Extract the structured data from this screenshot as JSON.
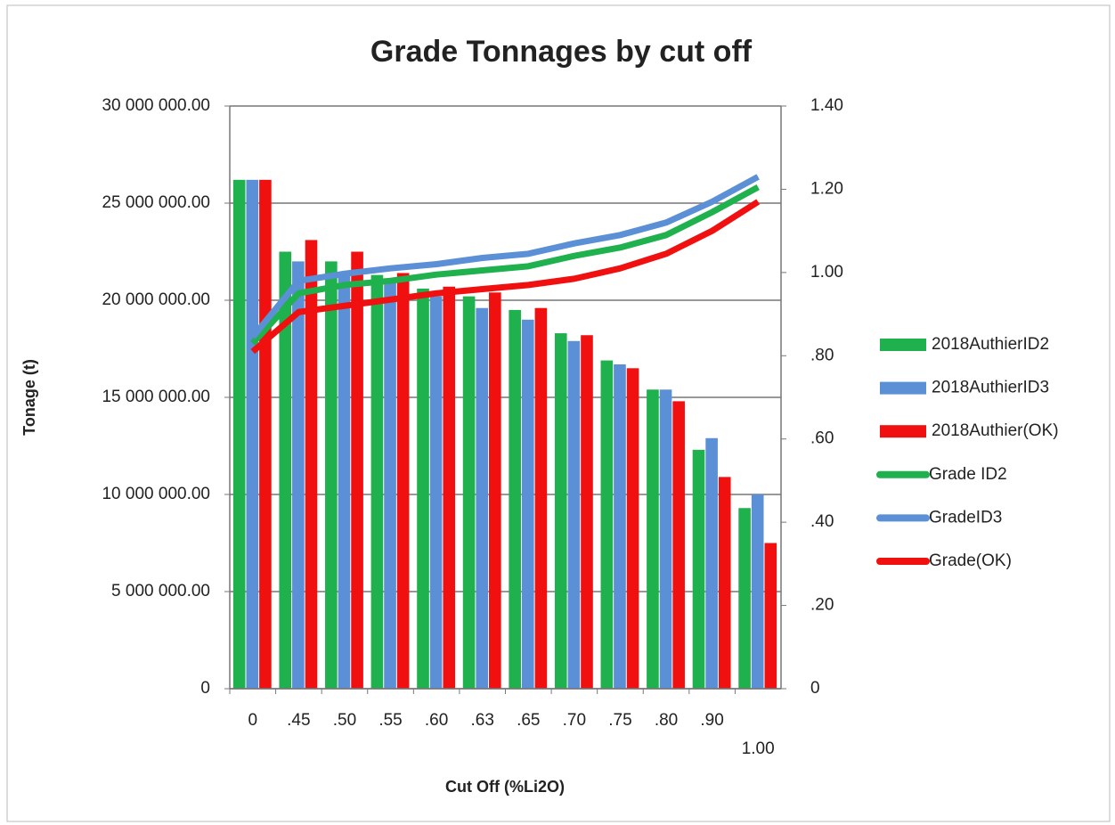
{
  "chart_data": {
    "type": "bar_line",
    "title": "Grade Tonnages by cut off",
    "y_label": "Tonage (t)",
    "x_label": "Cut Off (%Li2O)",
    "categories": [
      "0",
      ".45",
      ".50",
      ".55",
      ".60",
      ".63",
      ".65",
      ".70",
      ".75",
      ".80",
      ".90",
      "1.00"
    ],
    "series": [
      {
        "name": "2018AuthierID2",
        "kind": "bar",
        "color": "#1fb14d",
        "values": [
          26200000,
          22500000,
          22000000,
          21300000,
          20600000,
          20200000,
          19500000,
          18300000,
          16900000,
          15400000,
          12300000,
          9300000
        ]
      },
      {
        "name": "2018AuthierID3",
        "kind": "bar",
        "color": "#5b8fd6",
        "values": [
          26200000,
          22000000,
          21400000,
          21000000,
          20200000,
          19600000,
          19000000,
          17900000,
          16700000,
          15400000,
          12900000,
          10000000
        ]
      },
      {
        "name": "2018Authier(OK)",
        "kind": "bar",
        "color": "#f01010",
        "values": [
          26200000,
          23100000,
          22500000,
          21400000,
          20700000,
          20400000,
          19600000,
          18200000,
          16500000,
          14800000,
          10900000,
          7500000
        ]
      },
      {
        "name": "Grade ID2",
        "kind": "line",
        "axis": "y2",
        "color": "#1fb14d",
        "values": [
          0.83,
          0.95,
          0.97,
          0.98,
          0.995,
          1.005,
          1.015,
          1.04,
          1.06,
          1.09,
          1.145,
          1.205
        ]
      },
      {
        "name": "GradeID3",
        "kind": "line",
        "axis": "y2",
        "color": "#5b8fd6",
        "values": [
          0.845,
          0.98,
          0.997,
          1.01,
          1.02,
          1.035,
          1.045,
          1.07,
          1.09,
          1.12,
          1.17,
          1.23
        ]
      },
      {
        "name": "Grade(OK)",
        "kind": "line",
        "axis": "y2",
        "color": "#f01010",
        "values": [
          0.81,
          0.905,
          0.92,
          0.935,
          0.95,
          0.96,
          0.97,
          0.985,
          1.01,
          1.045,
          1.1,
          1.17
        ]
      }
    ],
    "ylim": [
      0,
      30000000
    ],
    "yticks": [
      0,
      {
        "value": 5000000,
        "label": "5 000 000.00"
      },
      {
        "value": 10000000,
        "label": "10 000 000.00"
      },
      {
        "value": 15000000,
        "label": "15 000 000.00"
      },
      {
        "value": 20000000,
        "label": "20 000 000.00"
      },
      {
        "value": 25000000,
        "label": "25 000 000.00"
      },
      {
        "value": 30000000,
        "label": "30 000 000.00"
      }
    ],
    "y2lim": [
      0,
      1.4
    ],
    "y2ticks": [
      0,
      {
        "value": 0.2,
        "label": ".20"
      },
      {
        "value": 0.4,
        "label": ".40"
      },
      {
        "value": 0.6,
        "label": ".60"
      },
      {
        "value": 0.8,
        "label": ".80"
      },
      {
        "value": 1.0,
        "label": "1.00"
      },
      {
        "value": 1.2,
        "label": "1.20"
      },
      {
        "value": 1.4,
        "label": "1.40"
      }
    ],
    "grid": true,
    "legend": "right"
  }
}
